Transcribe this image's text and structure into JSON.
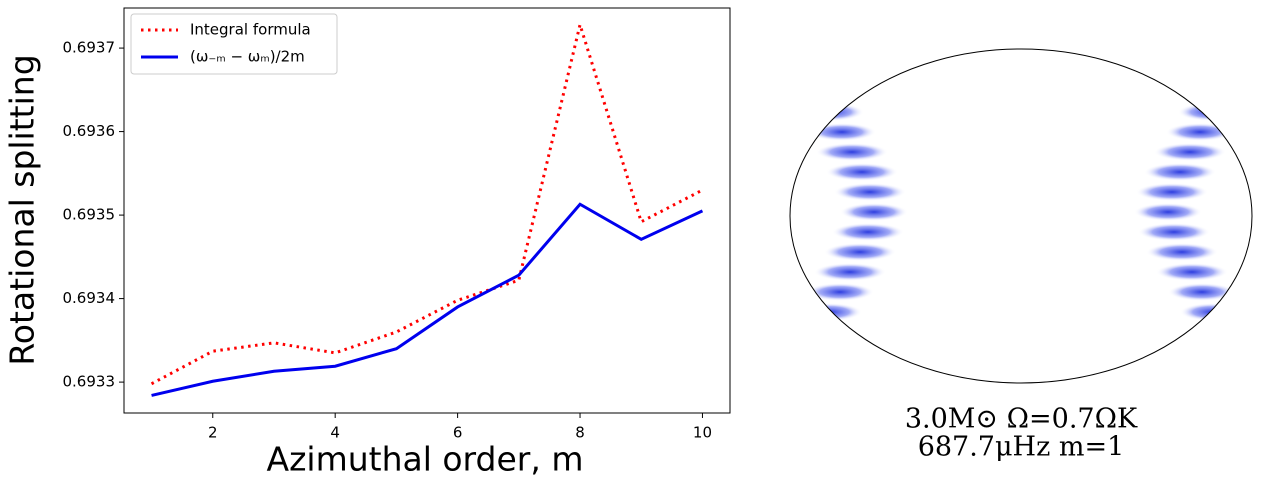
{
  "chart_data": {
    "type": "line",
    "xlabel": "Azimuthal order, m",
    "ylabel": "Rotational splitting",
    "x": [
      1,
      2,
      3,
      4,
      5,
      6,
      7,
      8,
      9,
      10
    ],
    "series": [
      {
        "name": "Integral formula",
        "color": "#ff0000",
        "style": "dotted",
        "values": [
          0.693298,
          0.693337,
          0.693347,
          0.693335,
          0.69336,
          0.693398,
          0.693422,
          0.693728,
          0.693492,
          0.69353
        ]
      },
      {
        "name": "(ω₋ₘ − ωₘ)/2m",
        "color": "#0000ee",
        "style": "solid",
        "values": [
          0.693284,
          0.693301,
          0.693313,
          0.693319,
          0.69334,
          0.69339,
          0.693428,
          0.693513,
          0.693471,
          0.693505
        ]
      }
    ],
    "xlim": [
      0.55,
      10.45
    ],
    "ylim": [
      0.693263,
      0.693748
    ],
    "xticks": [
      2,
      4,
      6,
      8,
      10
    ],
    "yticks": [
      0.6933,
      0.6934,
      0.6935,
      0.6936,
      0.6937
    ],
    "legend": "upper-left",
    "annotations": [
      "3.0M⊙   Ω=0.7ΩK",
      "687.7μHz   m=1"
    ]
  }
}
